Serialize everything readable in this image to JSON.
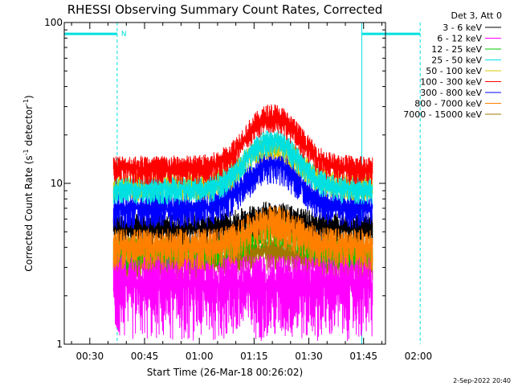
{
  "chart_data": {
    "type": "line",
    "title": "RHESSI Observing Summary Count Rates, Corrected",
    "xlabel": "Start Time (26-Mar-18 00:26:02)",
    "ylabel": "Corrected Count Rate (s",
    "ylabel_sup1": "-1",
    "ylabel_mid": " detector",
    "ylabel_sup2": "-1",
    "ylabel_end": ")",
    "yscale": "log",
    "ylim": [
      1,
      100
    ],
    "yticks": [
      {
        "value": 1,
        "label": "1"
      },
      {
        "value": 10,
        "label": "10"
      },
      {
        "value": 100,
        "label": "100"
      }
    ],
    "xlim_minutes": [
      23,
      111
    ],
    "xticks": [
      {
        "value": 30,
        "label": "00:30"
      },
      {
        "value": 45,
        "label": "00:45"
      },
      {
        "value": 60,
        "label": "01:00"
      },
      {
        "value": 75,
        "label": "01:15"
      },
      {
        "value": 90,
        "label": "01:30"
      },
      {
        "value": 105,
        "label": "01:45"
      },
      {
        "value": 120,
        "label": "02:00"
      }
    ],
    "legend_header": "Det 3, Att 0",
    "legend_position": "right",
    "series": [
      {
        "name": "3 - 6 keV",
        "color": "#000000",
        "level": 4.8
      },
      {
        "name": "6 - 12 keV",
        "color": "#ff00ff",
        "level": 1.9
      },
      {
        "name": "12 - 25 keV",
        "color": "#00c800",
        "level": 3.6
      },
      {
        "name": "25 - 50 keV",
        "color": "#00e0e0",
        "level": 9.0
      },
      {
        "name": "50 - 100 keV",
        "color": "#d8c800",
        "level": 9.5
      },
      {
        "name": "100 - 300 keV",
        "color": "#ff0000",
        "level": 11.5
      },
      {
        "name": "300 - 800 keV",
        "color": "#0000ff",
        "level": 6.5
      },
      {
        "name": "800 - 7000 keV",
        "color": "#ff8000",
        "level": 3.6
      },
      {
        "name": "7000 - 15000 keV",
        "color": "#a07800",
        "level": 3.0
      }
    ],
    "data_range_minutes": [
      36.5,
      107.5
    ],
    "peak_minutes": 80,
    "flags": {
      "color": "#00e0e0",
      "label": "N",
      "bars": [
        {
          "start_minutes": 23,
          "end_minutes": 37.5,
          "value": 85
        },
        {
          "start_minutes": 104.5,
          "end_minutes": 120.5,
          "value": 85
        }
      ],
      "dashed_lines_minutes": [
        37.5,
        120.5
      ],
      "solid_lines_minutes": [
        23,
        104.5
      ]
    }
  },
  "footer": {
    "timestamp": "2-Sep-2022 20:40"
  }
}
